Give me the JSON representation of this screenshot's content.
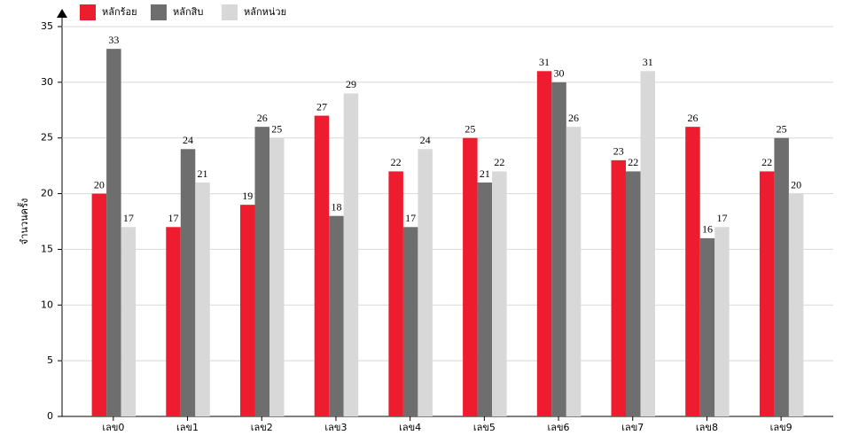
{
  "chart_data": {
    "type": "bar",
    "y_label": "จำนวนครั้ง",
    "categories": [
      "เลข0",
      "เลข1",
      "เลข2",
      "เลข3",
      "เลข4",
      "เลข5",
      "เลข6",
      "เลข7",
      "เลข8",
      "เลข9"
    ],
    "series": [
      {
        "name": "หลักร้อย",
        "color": "#ed1c2e",
        "values": [
          20,
          17,
          19,
          27,
          22,
          25,
          31,
          23,
          26,
          22
        ]
      },
      {
        "name": "หลักสิบ",
        "color": "#6e6e6e",
        "values": [
          33,
          24,
          26,
          18,
          17,
          21,
          30,
          22,
          16,
          25
        ]
      },
      {
        "name": "หลักหน่วย",
        "color": "#d8d8d8",
        "values": [
          17,
          21,
          25,
          29,
          24,
          22,
          26,
          31,
          17,
          20
        ]
      }
    ],
    "ylim": [
      0,
      35
    ],
    "yticks": [
      0,
      5,
      10,
      15,
      20,
      25,
      30,
      35
    ],
    "grid": true
  }
}
